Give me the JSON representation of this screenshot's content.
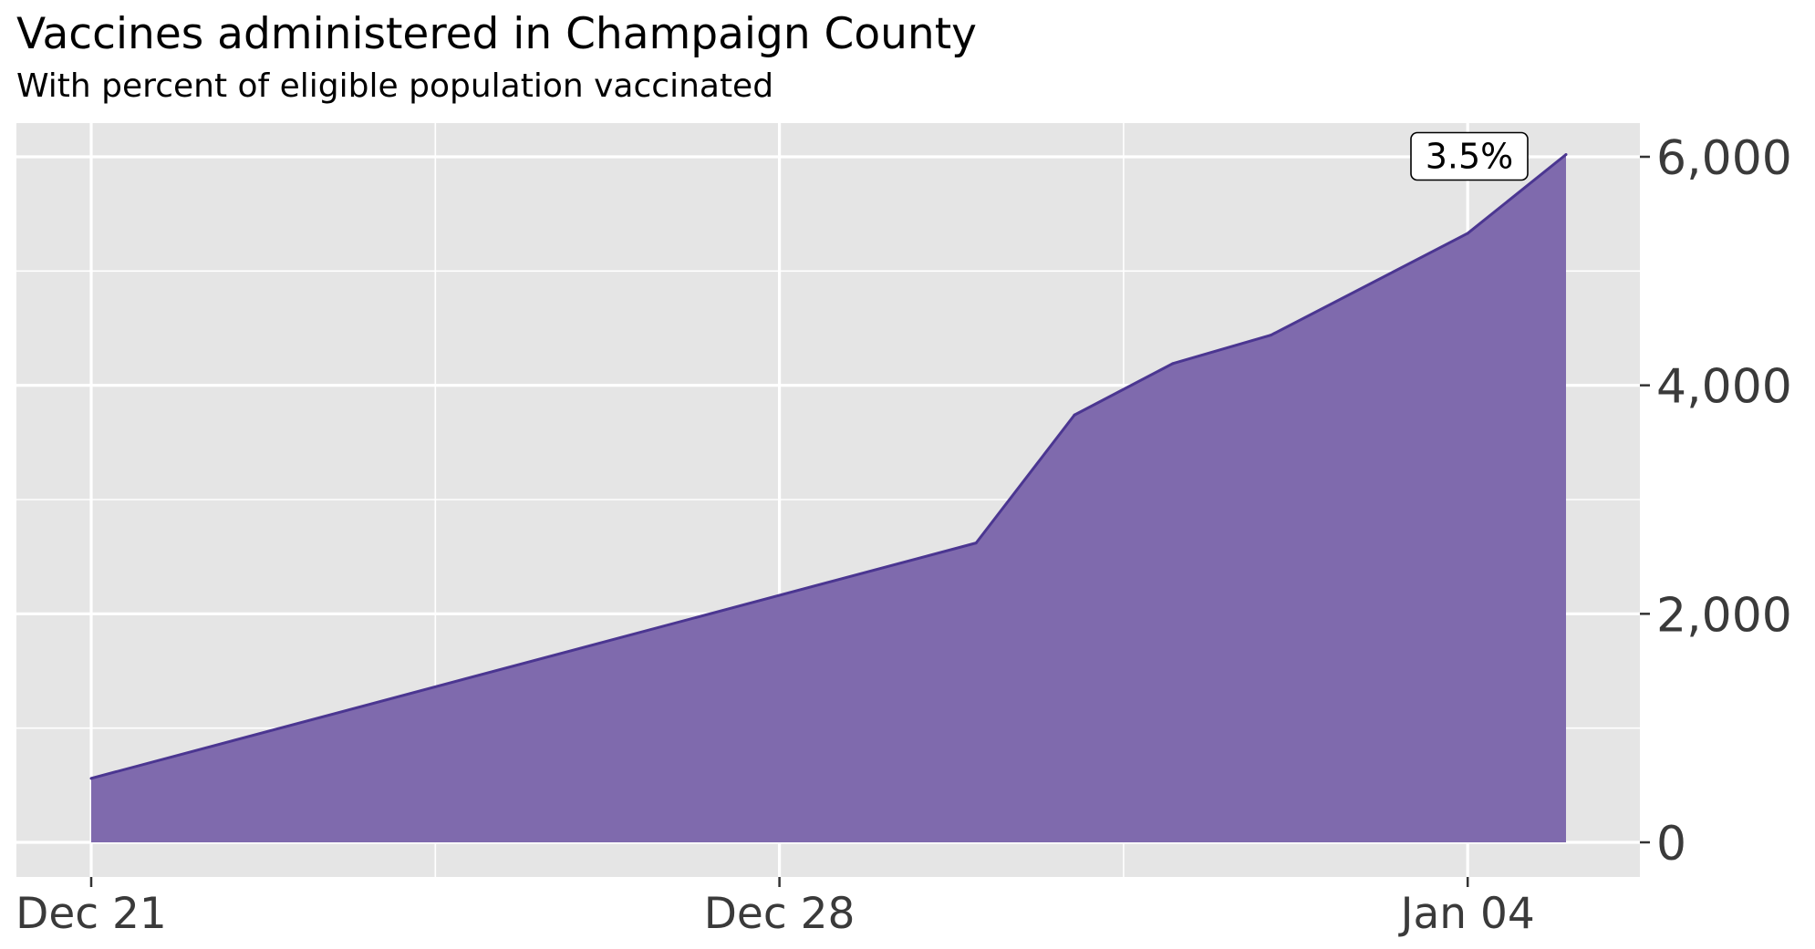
{
  "chart_data": {
    "type": "area",
    "title": "Vaccines administered in Champaign County",
    "subtitle": "With percent of eligible population vaccinated",
    "xlabel": "",
    "ylabel": "",
    "x": [
      "2020-12-21",
      "2020-12-30",
      "2020-12-31",
      "2021-01-01",
      "2021-01-02",
      "2021-01-04",
      "2021-01-05"
    ],
    "values": [
      560,
      2620,
      3740,
      4190,
      4440,
      5330,
      6020
    ],
    "xticks": [
      {
        "value": "2020-12-21",
        "label": "Dec 21"
      },
      {
        "value": "2020-12-28",
        "label": "Dec 28"
      },
      {
        "value": "2021-01-04",
        "label": "Jan 04"
      }
    ],
    "xlim": [
      "2020-12-21",
      "2021-01-05"
    ],
    "ylim": [
      0,
      6000
    ],
    "yticks": [
      {
        "value": 0,
        "label": "0"
      },
      {
        "value": 2000,
        "label": "2,000"
      },
      {
        "value": 4000,
        "label": "4,000"
      },
      {
        "value": 6000,
        "label": "6,000"
      }
    ],
    "y_axis_position": "right",
    "grid": true,
    "fill_color": "#7f6aad",
    "line_color": "#4b3691",
    "panel_color": "#e5e5e5",
    "annotation": {
      "label": "3.5%",
      "x": "2021-01-05",
      "y": 6020
    }
  }
}
